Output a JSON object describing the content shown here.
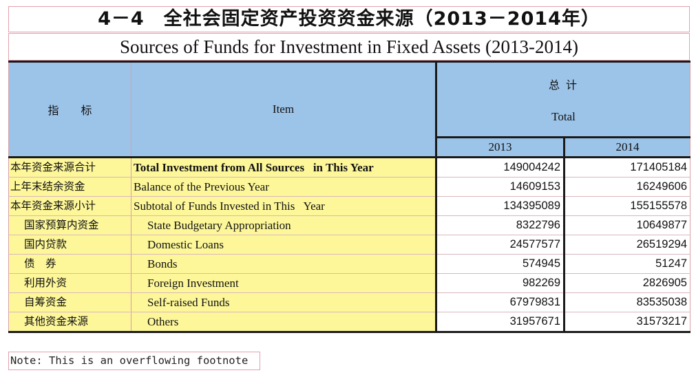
{
  "title": {
    "cn": "4－4　全社会固定资产投资资金来源（2013－2014年）",
    "en": "Sources of Funds for Investment in Fixed Assets (2013-2014)"
  },
  "header": {
    "indicator": "指　　标",
    "item": "Item",
    "total_cn": "总 计",
    "total_en": "Total",
    "years": [
      "2013",
      "2014"
    ]
  },
  "rows": [
    {
      "cn": "本年资金来源合计",
      "en": "Total Investment from All Sources   in This Year",
      "v2013": "149004242",
      "v2014": "171405184"
    },
    {
      "cn": "上年末结余资金",
      "en": "Balance of the Previous Year",
      "v2013": "14609153",
      "v2014": "16249606"
    },
    {
      "cn": "本年资金来源小计",
      "en": "Subtotal of Funds Invested in This   Year",
      "v2013": "134395089",
      "v2014": "155155578"
    },
    {
      "cn": "国家预算内资金",
      "en": "State Budgetary Appropriation",
      "v2013": "8322796",
      "v2014": "10649877"
    },
    {
      "cn": "国内贷款",
      "en": "Domestic Loans",
      "v2013": "24577577",
      "v2014": "26519294"
    },
    {
      "cn": "债　券",
      "en": "Bonds",
      "v2013": "574945",
      "v2014": "51247"
    },
    {
      "cn": "利用外资",
      "en": "Foreign Investment",
      "v2013": "982269",
      "v2014": "2826905"
    },
    {
      "cn": "自筹资金",
      "en": "Self-raised Funds",
      "v2013": "67979831",
      "v2014": "83535038"
    },
    {
      "cn": "其他资金来源",
      "en": "Others",
      "v2013": "31957671",
      "v2014": "31573217"
    }
  ],
  "footnote": "Note: This is an overflowing footnote"
}
